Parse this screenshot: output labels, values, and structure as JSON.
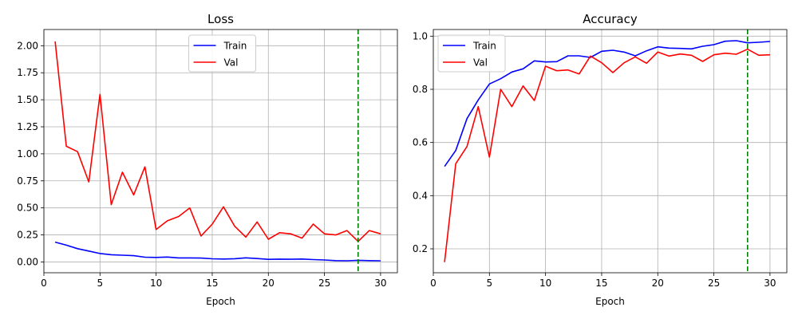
{
  "chart_data": [
    {
      "type": "line",
      "title": "Loss",
      "xlabel": "Epoch",
      "ylabel": "",
      "xlim": [
        0,
        31.5
      ],
      "ylim": [
        -0.1,
        2.15
      ],
      "xticks": [
        0,
        5,
        10,
        15,
        20,
        25,
        30
      ],
      "xtick_labels": [
        "0",
        "5",
        "10",
        "15",
        "20",
        "25",
        "30"
      ],
      "yticks": [
        0,
        0.25,
        0.5,
        0.75,
        1.0,
        1.25,
        1.5,
        1.75,
        2.0
      ],
      "ytick_labels": [
        "0.00",
        "0.25",
        "0.50",
        "0.75",
        "1.00",
        "1.25",
        "1.50",
        "1.75",
        "2.00"
      ],
      "grid": true,
      "legend_position": "top-center",
      "vline": {
        "x": 28,
        "color": "#008000",
        "style": "dashed"
      },
      "x": [
        1,
        2,
        3,
        4,
        5,
        6,
        7,
        8,
        9,
        10,
        11,
        12,
        13,
        14,
        15,
        16,
        17,
        18,
        19,
        20,
        21,
        22,
        23,
        24,
        25,
        26,
        27,
        28,
        29,
        30
      ],
      "series": [
        {
          "name": "Train",
          "color": "#0000ff",
          "values": [
            0.183,
            0.155,
            0.123,
            0.101,
            0.078,
            0.067,
            0.062,
            0.058,
            0.044,
            0.042,
            0.045,
            0.037,
            0.037,
            0.036,
            0.029,
            0.027,
            0.03,
            0.038,
            0.031,
            0.024,
            0.026,
            0.025,
            0.027,
            0.022,
            0.018,
            0.012,
            0.011,
            0.015,
            0.012,
            0.011
          ]
        },
        {
          "name": "Val",
          "color": "#ff0000",
          "values": [
            2.04,
            1.07,
            1.02,
            0.74,
            1.55,
            0.53,
            0.83,
            0.62,
            0.88,
            0.3,
            0.38,
            0.42,
            0.5,
            0.24,
            0.35,
            0.51,
            0.33,
            0.23,
            0.37,
            0.21,
            0.27,
            0.26,
            0.22,
            0.35,
            0.26,
            0.25,
            0.29,
            0.19,
            0.29,
            0.26
          ]
        }
      ]
    },
    {
      "type": "line",
      "title": "Accuracy",
      "xlabel": "Epoch",
      "ylabel": "",
      "xlim": [
        0,
        31.5
      ],
      "ylim": [
        0.11,
        1.025
      ],
      "xticks": [
        0,
        5,
        10,
        15,
        20,
        25,
        30
      ],
      "xtick_labels": [
        "0",
        "5",
        "10",
        "15",
        "20",
        "25",
        "30"
      ],
      "yticks": [
        0.2,
        0.4,
        0.6,
        0.8,
        1.0
      ],
      "ytick_labels": [
        "0.2",
        "0.4",
        "0.6",
        "0.8",
        "1.0"
      ],
      "grid": true,
      "legend_position": "top-left",
      "vline": {
        "x": 28,
        "color": "#008000",
        "style": "dashed"
      },
      "x": [
        1,
        2,
        3,
        4,
        5,
        6,
        7,
        8,
        9,
        10,
        11,
        12,
        13,
        14,
        15,
        16,
        17,
        18,
        19,
        20,
        21,
        22,
        23,
        24,
        25,
        26,
        27,
        28,
        29,
        30
      ],
      "series": [
        {
          "name": "Train",
          "color": "#0000ff",
          "values": [
            0.51,
            0.57,
            0.69,
            0.76,
            0.82,
            0.84,
            0.865,
            0.877,
            0.907,
            0.903,
            0.904,
            0.926,
            0.926,
            0.92,
            0.943,
            0.947,
            0.94,
            0.926,
            0.945,
            0.96,
            0.955,
            0.954,
            0.952,
            0.962,
            0.968,
            0.981,
            0.983,
            0.975,
            0.977,
            0.98
          ]
        },
        {
          "name": "Val",
          "color": "#ff0000",
          "values": [
            0.15,
            0.52,
            0.585,
            0.735,
            0.545,
            0.8,
            0.735,
            0.813,
            0.758,
            0.887,
            0.87,
            0.873,
            0.858,
            0.925,
            0.9,
            0.863,
            0.9,
            0.922,
            0.898,
            0.94,
            0.925,
            0.933,
            0.928,
            0.905,
            0.93,
            0.936,
            0.932,
            0.951,
            0.928,
            0.93
          ]
        }
      ]
    }
  ]
}
